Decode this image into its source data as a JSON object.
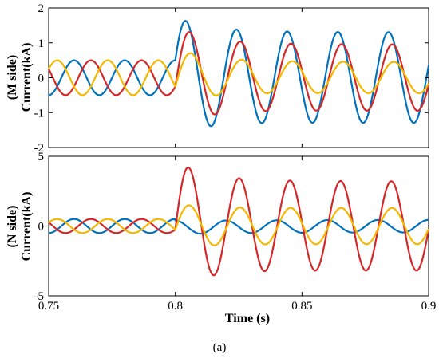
{
  "figure": {
    "caption": "(a)"
  },
  "chart_data": [
    {
      "type": "line",
      "ylabel_line1": "(M side)",
      "ylabel_line2": "Current(kA)",
      "xlabel": "",
      "xlim": [
        0.75,
        0.9
      ],
      "ylim": [
        -2,
        2
      ],
      "yticks": [
        "2",
        "1",
        "0",
        "-1",
        "-2"
      ],
      "xticks": [],
      "series_colors": [
        "#0072bd",
        "#d62728",
        "#f5b800"
      ],
      "fault_time": 0.8,
      "frequency_hz": 50,
      "series": [
        {
          "color": "#0072bd",
          "prefault_amplitude": 0.5,
          "prefault_phase_deg": 90,
          "postfault_amplitude": 1.3,
          "postfault_peak_first": 1.7,
          "postfault_offset": 0.05
        },
        {
          "color": "#d62728",
          "prefault_amplitude": 0.5,
          "prefault_phase_deg": -30,
          "postfault_amplitude": 0.95,
          "postfault_peak_first": 1.45,
          "postfault_offset": 0.05
        },
        {
          "color": "#f5b800",
          "prefault_amplitude": 0.5,
          "prefault_phase_deg": 210,
          "postfault_amplitude": 0.45,
          "postfault_peak_first": 0.8,
          "postfault_offset": 0.05
        }
      ]
    },
    {
      "type": "line",
      "ylabel_line1": "(N side)",
      "ylabel_line2": "Current(kA)",
      "xlabel": "Time (s)",
      "xlim": [
        0.75,
        0.9
      ],
      "ylim": [
        -5,
        5
      ],
      "yticks": [
        "5",
        "0",
        "-5"
      ],
      "xticks": [
        "0.75",
        "0.8",
        "0.85",
        "0.9"
      ],
      "fault_time": 0.8,
      "frequency_hz": 50,
      "series": [
        {
          "color": "#0072bd",
          "prefault_amplitude": 0.5,
          "prefault_phase_deg": 90,
          "postfault_amplitude": 0.45,
          "postfault_peak_first": 0.5,
          "postfault_offset": -0.1
        },
        {
          "color": "#d62728",
          "prefault_amplitude": 0.5,
          "prefault_phase_deg": -30,
          "postfault_amplitude": 3.2,
          "postfault_peak_first": 4.6,
          "postfault_offset": 0.1
        },
        {
          "color": "#f5b800",
          "prefault_amplitude": 0.5,
          "prefault_phase_deg": 210,
          "postfault_amplitude": 1.3,
          "postfault_peak_first": 1.6,
          "postfault_offset": 0.0
        }
      ]
    }
  ]
}
